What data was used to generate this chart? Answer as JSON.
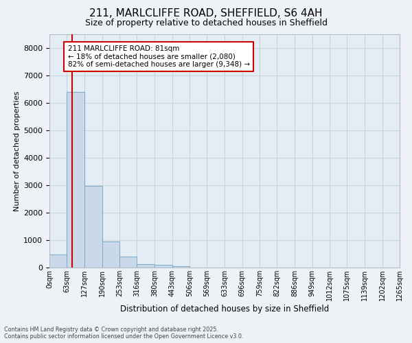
{
  "title_line1": "211, MARLCLIFFE ROAD, SHEFFIELD, S6 4AH",
  "title_line2": "Size of property relative to detached houses in Sheffield",
  "xlabel": "Distribution of detached houses by size in Sheffield",
  "ylabel": "Number of detached properties",
  "bar_color": "#c9d9ea",
  "bar_edge_color": "#7aaac8",
  "grid_color": "#c8d4de",
  "annotation_box_color": "#cc0000",
  "vline_color": "#cc0000",
  "property_sqm": 81,
  "annotation_text": "211 MARLCLIFFE ROAD: 81sqm\n← 18% of detached houses are smaller (2,080)\n82% of semi-detached houses are larger (9,348) →",
  "bins": [
    0,
    63,
    127,
    190,
    253,
    316,
    380,
    443,
    506,
    569,
    633,
    696,
    759,
    822,
    886,
    949,
    1012,
    1075,
    1139,
    1202,
    1265
  ],
  "bar_heights": [
    480,
    6400,
    2980,
    950,
    400,
    130,
    90,
    50,
    0,
    0,
    0,
    0,
    0,
    0,
    0,
    0,
    0,
    0,
    0,
    0
  ],
  "ylim": [
    0,
    8500
  ],
  "yticks": [
    0,
    1000,
    2000,
    3000,
    4000,
    5000,
    6000,
    7000,
    8000
  ],
  "tick_labels": [
    "0sqm",
    "63sqm",
    "127sqm",
    "190sqm",
    "253sqm",
    "316sqm",
    "380sqm",
    "443sqm",
    "506sqm",
    "569sqm",
    "633sqm",
    "696sqm",
    "759sqm",
    "822sqm",
    "886sqm",
    "949sqm",
    "1012sqm",
    "1075sqm",
    "1139sqm",
    "1202sqm",
    "1265sqm"
  ],
  "footer_text": "Contains HM Land Registry data © Crown copyright and database right 2025.\nContains public sector information licensed under the Open Government Licence v3.0.",
  "bg_color": "#eef2f6",
  "plot_bg_color": "#e4ecf4"
}
